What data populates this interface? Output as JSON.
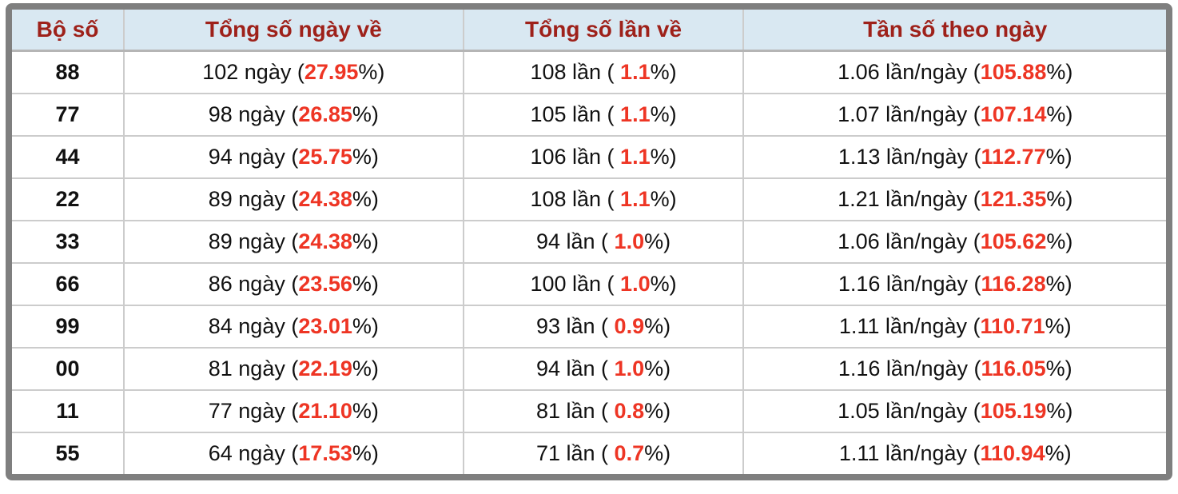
{
  "colors": {
    "frame": "#7f7f7f",
    "grid": "#cccccc",
    "header_bg": "#d9e8f2",
    "header_text": "#9e211a",
    "highlight": "#ee3524",
    "text": "#111111"
  },
  "table": {
    "columns": [
      {
        "key": "pair",
        "label": "Bộ số"
      },
      {
        "key": "days",
        "label": "Tổng số ngày về"
      },
      {
        "key": "times",
        "label": "Tổng số lần về"
      },
      {
        "key": "freq",
        "label": "Tần số theo ngày"
      }
    ],
    "rows": [
      {
        "pair": "88",
        "days_pre": "102 ngày (",
        "days_hl": "27.95",
        "days_post": "%)",
        "times_pre": "108 lần ( ",
        "times_hl": "1.1",
        "times_post": "%)",
        "freq_pre": "1.06 lần/ngày (",
        "freq_hl": "105.88",
        "freq_post": "%)"
      },
      {
        "pair": "77",
        "days_pre": "98 ngày (",
        "days_hl": "26.85",
        "days_post": "%)",
        "times_pre": "105 lần ( ",
        "times_hl": "1.1",
        "times_post": "%)",
        "freq_pre": "1.07 lần/ngày (",
        "freq_hl": "107.14",
        "freq_post": "%)"
      },
      {
        "pair": "44",
        "days_pre": "94 ngày (",
        "days_hl": "25.75",
        "days_post": "%)",
        "times_pre": "106 lần ( ",
        "times_hl": "1.1",
        "times_post": "%)",
        "freq_pre": "1.13 lần/ngày (",
        "freq_hl": "112.77",
        "freq_post": "%)"
      },
      {
        "pair": "22",
        "days_pre": "89 ngày (",
        "days_hl": "24.38",
        "days_post": "%)",
        "times_pre": "108 lần ( ",
        "times_hl": "1.1",
        "times_post": "%)",
        "freq_pre": "1.21 lần/ngày (",
        "freq_hl": "121.35",
        "freq_post": "%)"
      },
      {
        "pair": "33",
        "days_pre": "89 ngày (",
        "days_hl": "24.38",
        "days_post": "%)",
        "times_pre": "94 lần ( ",
        "times_hl": "1.0",
        "times_post": "%)",
        "freq_pre": "1.06 lần/ngày (",
        "freq_hl": "105.62",
        "freq_post": "%)"
      },
      {
        "pair": "66",
        "days_pre": "86 ngày (",
        "days_hl": "23.56",
        "days_post": "%)",
        "times_pre": "100 lần ( ",
        "times_hl": "1.0",
        "times_post": "%)",
        "freq_pre": "1.16 lần/ngày (",
        "freq_hl": "116.28",
        "freq_post": "%)"
      },
      {
        "pair": "99",
        "days_pre": "84 ngày (",
        "days_hl": "23.01",
        "days_post": "%)",
        "times_pre": "93 lần ( ",
        "times_hl": "0.9",
        "times_post": "%)",
        "freq_pre": "1.11 lần/ngày (",
        "freq_hl": "110.71",
        "freq_post": "%)"
      },
      {
        "pair": "00",
        "days_pre": "81 ngày (",
        "days_hl": "22.19",
        "days_post": "%)",
        "times_pre": "94 lần ( ",
        "times_hl": "1.0",
        "times_post": "%)",
        "freq_pre": "1.16 lần/ngày (",
        "freq_hl": "116.05",
        "freq_post": "%)"
      },
      {
        "pair": "11",
        "days_pre": "77 ngày (",
        "days_hl": "21.10",
        "days_post": "%)",
        "times_pre": "81 lần ( ",
        "times_hl": "0.8",
        "times_post": "%)",
        "freq_pre": "1.05 lần/ngày (",
        "freq_hl": "105.19",
        "freq_post": "%)"
      },
      {
        "pair": "55",
        "days_pre": "64 ngày (",
        "days_hl": "17.53",
        "days_post": "%)",
        "times_pre": "71 lần ( ",
        "times_hl": "0.7",
        "times_post": "%)",
        "freq_pre": "1.11 lần/ngày (",
        "freq_hl": "110.94",
        "freq_post": "%)"
      }
    ]
  },
  "chart_data": {
    "type": "table",
    "columns": [
      "Bộ số",
      "Tổng số ngày về",
      "Tổng số lần về",
      "Tần số theo ngày"
    ],
    "rows": [
      {
        "pair": "88",
        "days": 102,
        "days_pct": 27.95,
        "times": 108,
        "times_pct": 1.1,
        "freq_per_day": 1.06,
        "freq_pct": 105.88
      },
      {
        "pair": "77",
        "days": 98,
        "days_pct": 26.85,
        "times": 105,
        "times_pct": 1.1,
        "freq_per_day": 1.07,
        "freq_pct": 107.14
      },
      {
        "pair": "44",
        "days": 94,
        "days_pct": 25.75,
        "times": 106,
        "times_pct": 1.1,
        "freq_per_day": 1.13,
        "freq_pct": 112.77
      },
      {
        "pair": "22",
        "days": 89,
        "days_pct": 24.38,
        "times": 108,
        "times_pct": 1.1,
        "freq_per_day": 1.21,
        "freq_pct": 121.35
      },
      {
        "pair": "33",
        "days": 89,
        "days_pct": 24.38,
        "times": 94,
        "times_pct": 1.0,
        "freq_per_day": 1.06,
        "freq_pct": 105.62
      },
      {
        "pair": "66",
        "days": 86,
        "days_pct": 23.56,
        "times": 100,
        "times_pct": 1.0,
        "freq_per_day": 1.16,
        "freq_pct": 116.28
      },
      {
        "pair": "99",
        "days": 84,
        "days_pct": 23.01,
        "times": 93,
        "times_pct": 0.9,
        "freq_per_day": 1.11,
        "freq_pct": 110.71
      },
      {
        "pair": "00",
        "days": 81,
        "days_pct": 22.19,
        "times": 94,
        "times_pct": 1.0,
        "freq_per_day": 1.16,
        "freq_pct": 116.05
      },
      {
        "pair": "11",
        "days": 77,
        "days_pct": 21.1,
        "times": 81,
        "times_pct": 0.8,
        "freq_per_day": 1.05,
        "freq_pct": 105.19
      },
      {
        "pair": "55",
        "days": 64,
        "days_pct": 17.53,
        "times": 71,
        "times_pct": 0.7,
        "freq_per_day": 1.11,
        "freq_pct": 110.94
      }
    ]
  }
}
